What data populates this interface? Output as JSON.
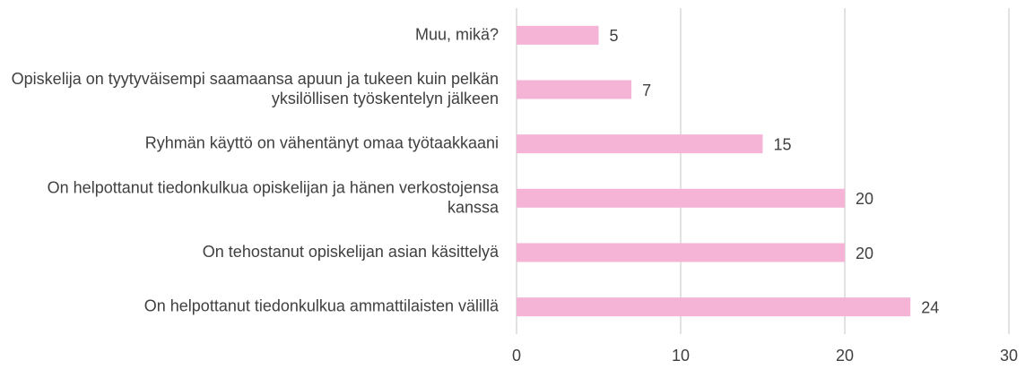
{
  "chart_data": {
    "type": "barh",
    "categories": [
      "Muu, mikä?",
      "Opiskelija on tyytyväisempi saamaansa apuun ja tukeen kuin pelkän yksilöllisen työskentelyn jälkeen",
      "Ryhmän käyttö on vähentänyt omaa työtaakkaani",
      "On helpottanut tiedonkulkua opiskelijan ja hänen verkostojensa kanssa",
      "On tehostanut opiskelijan asian käsittelyä",
      "On helpottanut tiedonkulkua ammattilaisten välillä"
    ],
    "values": [
      5,
      7,
      15,
      20,
      20,
      24
    ],
    "color": "#f5b3d5",
    "xlim": [
      0,
      30
    ],
    "xticks": [
      0,
      10,
      20,
      30
    ],
    "grid": true
  }
}
